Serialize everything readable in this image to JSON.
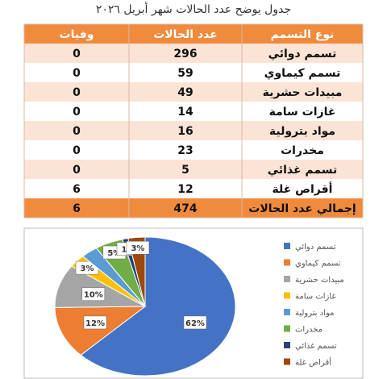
{
  "title": "جدول يوضح عدد الحالات شهر أبريل ٢٠٢٦",
  "table": {
    "header": [
      "نوع التسمم",
      "عدد الحالات",
      "وفيات"
    ],
    "rows": [
      [
        "تسمم دوائي",
        296,
        0
      ],
      [
        "تسمم كيماوي",
        59,
        0
      ],
      [
        "مبيدات حشرية",
        49,
        0
      ],
      [
        "غازات سامة",
        14,
        0
      ],
      [
        "مواد بترولية",
        16,
        0
      ],
      [
        "مخدرات",
        23,
        0
      ],
      [
        "تسمم غذائي",
        5,
        0
      ],
      [
        "أقراص غلة",
        12,
        6
      ]
    ],
    "total": [
      "إجمالي عدد الحالات",
      474,
      6
    ]
  },
  "chart_data": {
    "type": "pie",
    "categories": [
      "تسمم دوائي",
      "تسمم كيماوي",
      "مبيدات حشرية",
      "غازات سامة",
      "مواد بترولية",
      "مخدرات",
      "تسمم غذائي",
      "أقراص غلة"
    ],
    "values": [
      62,
      12,
      10,
      3,
      3,
      5,
      1,
      3
    ],
    "value_labels": [
      "62%",
      "12%",
      "10%",
      "3%",
      null,
      "5%",
      "1%",
      "3%"
    ],
    "colors": [
      "#4472c4",
      "#ed7d31",
      "#a5a5a5",
      "#ffc000",
      "#5b9bd5",
      "#70ad47",
      "#264478",
      "#9e480e"
    ],
    "legend": "right"
  }
}
